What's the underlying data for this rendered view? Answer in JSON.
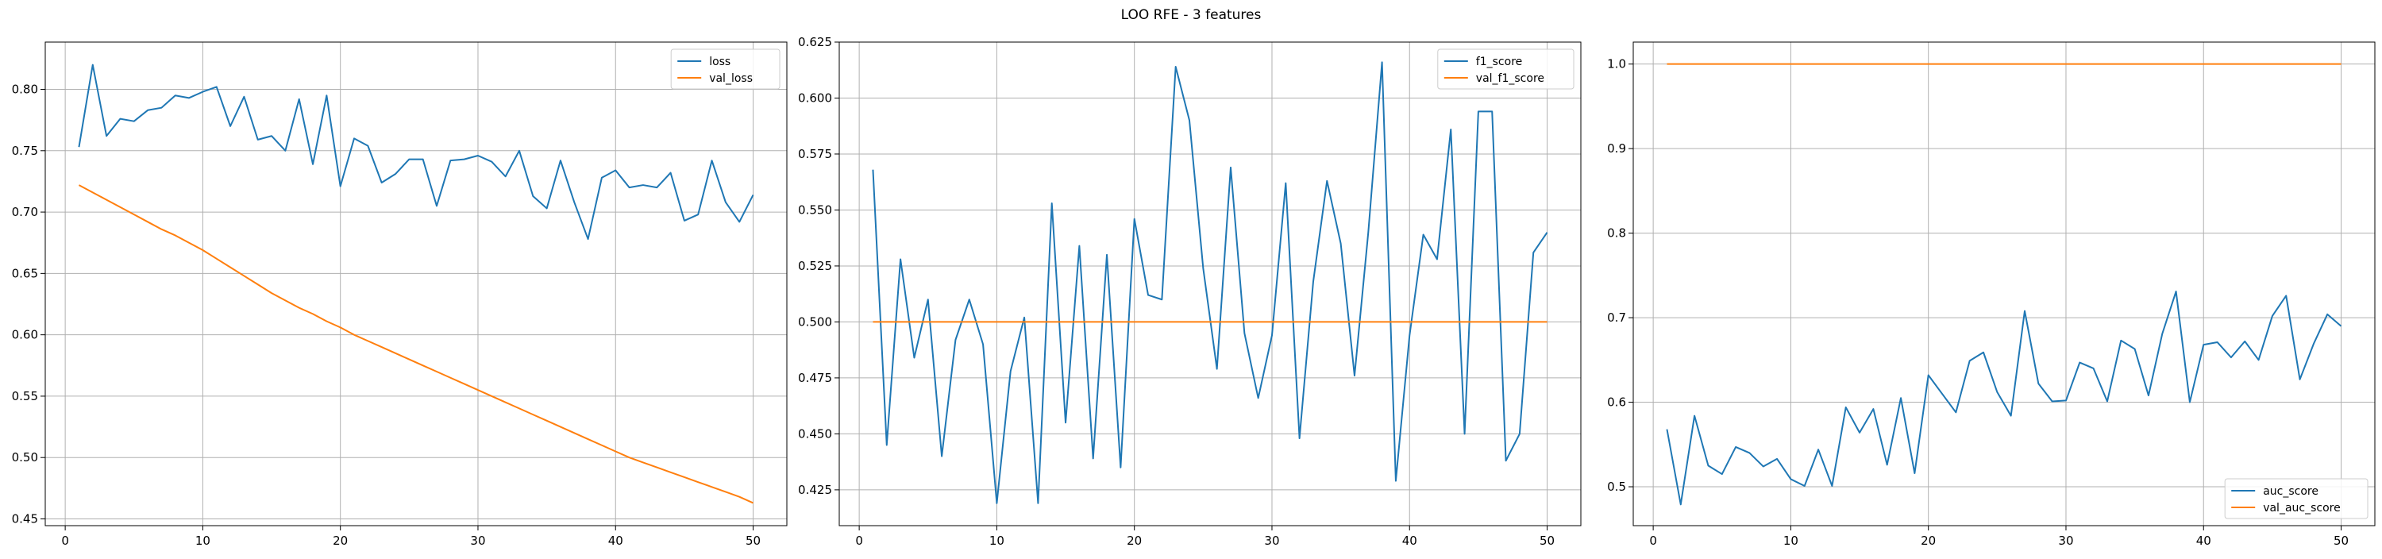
{
  "figure": {
    "title": "LOO RFE - 3 features"
  },
  "colors": {
    "series1": "#1f77b4",
    "series2": "#ff7f0e",
    "grid": "#b0b0b0"
  },
  "chart_data": [
    {
      "type": "line",
      "title": "",
      "xlabel": "",
      "ylabel": "",
      "xlim": [
        -1.45,
        52.45
      ],
      "ylim": [
        0.4445,
        0.8385
      ],
      "xticks": [
        0,
        10,
        20,
        30,
        40,
        50
      ],
      "yticks": [
        0.45,
        0.5,
        0.55,
        0.6,
        0.65,
        0.7,
        0.75,
        0.8
      ],
      "ytick_labels": [
        "0.45",
        "0.50",
        "0.55",
        "0.60",
        "0.65",
        "0.70",
        "0.75",
        "0.80"
      ],
      "grid": true,
      "legend": "top-right",
      "x": [
        1,
        2,
        3,
        4,
        5,
        6,
        7,
        8,
        9,
        10,
        11,
        12,
        13,
        14,
        15,
        16,
        17,
        18,
        19,
        20,
        21,
        22,
        23,
        24,
        25,
        26,
        27,
        28,
        29,
        30,
        31,
        32,
        33,
        34,
        35,
        36,
        37,
        38,
        39,
        40,
        41,
        42,
        43,
        44,
        45,
        46,
        47,
        48,
        49,
        50
      ],
      "series": [
        {
          "name": "loss",
          "values": [
            0.753,
            0.82,
            0.762,
            0.776,
            0.774,
            0.783,
            0.785,
            0.795,
            0.793,
            0.798,
            0.802,
            0.77,
            0.794,
            0.759,
            0.762,
            0.75,
            0.792,
            0.739,
            0.795,
            0.721,
            0.76,
            0.754,
            0.724,
            0.731,
            0.743,
            0.743,
            0.705,
            0.742,
            0.743,
            0.746,
            0.741,
            0.729,
            0.75,
            0.713,
            0.703,
            0.742,
            0.708,
            0.678,
            0.728,
            0.734,
            0.72,
            0.722,
            0.72,
            0.732,
            0.693,
            0.698,
            0.742,
            0.708,
            0.692,
            0.714
          ]
        },
        {
          "name": "val_loss",
          "values": [
            0.722,
            0.716,
            0.71,
            0.704,
            0.698,
            0.692,
            0.686,
            0.681,
            0.675,
            0.669,
            0.662,
            0.655,
            0.648,
            0.641,
            0.634,
            0.628,
            0.622,
            0.617,
            0.611,
            0.606,
            0.6,
            0.595,
            0.59,
            0.585,
            0.58,
            0.575,
            0.57,
            0.565,
            0.56,
            0.555,
            0.55,
            0.545,
            0.54,
            0.535,
            0.53,
            0.525,
            0.52,
            0.515,
            0.51,
            0.505,
            0.5,
            0.496,
            0.492,
            0.488,
            0.484,
            0.48,
            0.476,
            0.472,
            0.468,
            0.463
          ]
        }
      ]
    },
    {
      "type": "line",
      "title": "",
      "xlabel": "",
      "ylabel": "",
      "xlim": [
        -1.45,
        52.45
      ],
      "ylim": [
        0.409,
        0.625
      ],
      "xticks": [
        0,
        10,
        20,
        30,
        40,
        50
      ],
      "yticks": [
        0.425,
        0.45,
        0.475,
        0.5,
        0.525,
        0.55,
        0.575,
        0.6,
        0.625
      ],
      "ytick_labels": [
        "0.425",
        "0.450",
        "0.475",
        "0.500",
        "0.525",
        "0.550",
        "0.575",
        "0.600",
        "0.625"
      ],
      "grid": true,
      "legend": "top-right",
      "x": [
        1,
        2,
        3,
        4,
        5,
        6,
        7,
        8,
        9,
        10,
        11,
        12,
        13,
        14,
        15,
        16,
        17,
        18,
        19,
        20,
        21,
        22,
        23,
        24,
        25,
        26,
        27,
        28,
        29,
        30,
        31,
        32,
        33,
        34,
        35,
        36,
        37,
        38,
        39,
        40,
        41,
        42,
        43,
        44,
        45,
        46,
        47,
        48,
        49,
        50
      ],
      "series": [
        {
          "name": "f1_score",
          "values": [
            0.568,
            0.445,
            0.528,
            0.484,
            0.51,
            0.44,
            0.492,
            0.51,
            0.49,
            0.419,
            0.478,
            0.502,
            0.419,
            0.553,
            0.455,
            0.534,
            0.439,
            0.53,
            0.435,
            0.546,
            0.512,
            0.51,
            0.614,
            0.59,
            0.524,
            0.479,
            0.569,
            0.495,
            0.466,
            0.494,
            0.562,
            0.448,
            0.518,
            0.563,
            0.535,
            0.476,
            0.54,
            0.616,
            0.429,
            0.494,
            0.539,
            0.528,
            0.586,
            0.45,
            0.594,
            0.594,
            0.438,
            0.45,
            0.531,
            0.54
          ]
        },
        {
          "name": "val_f1_score",
          "values": [
            0.5,
            0.5,
            0.5,
            0.5,
            0.5,
            0.5,
            0.5,
            0.5,
            0.5,
            0.5,
            0.5,
            0.5,
            0.5,
            0.5,
            0.5,
            0.5,
            0.5,
            0.5,
            0.5,
            0.5,
            0.5,
            0.5,
            0.5,
            0.5,
            0.5,
            0.5,
            0.5,
            0.5,
            0.5,
            0.5,
            0.5,
            0.5,
            0.5,
            0.5,
            0.5,
            0.5,
            0.5,
            0.5,
            0.5,
            0.5,
            0.5,
            0.5,
            0.5,
            0.5,
            0.5,
            0.5,
            0.5,
            0.5,
            0.5,
            0.5
          ]
        }
      ]
    },
    {
      "type": "line",
      "title": "",
      "xlabel": "",
      "ylabel": "",
      "xlim": [
        -1.45,
        52.45
      ],
      "ylim": [
        0.454,
        1.026
      ],
      "xticks": [
        0,
        10,
        20,
        30,
        40,
        50
      ],
      "yticks": [
        0.5,
        0.6,
        0.7,
        0.8,
        0.9,
        1.0
      ],
      "ytick_labels": [
        "0.5",
        "0.6",
        "0.7",
        "0.8",
        "0.9",
        "1.0"
      ],
      "grid": true,
      "legend": "bottom-right",
      "x": [
        1,
        2,
        3,
        4,
        5,
        6,
        7,
        8,
        9,
        10,
        11,
        12,
        13,
        14,
        15,
        16,
        17,
        18,
        19,
        20,
        21,
        22,
        23,
        24,
        25,
        26,
        27,
        28,
        29,
        30,
        31,
        32,
        33,
        34,
        35,
        36,
        37,
        38,
        39,
        40,
        41,
        42,
        43,
        44,
        45,
        46,
        47,
        48,
        49,
        50
      ],
      "series": [
        {
          "name": "auc_score",
          "values": [
            0.568,
            0.479,
            0.584,
            0.525,
            0.515,
            0.547,
            0.54,
            0.524,
            0.533,
            0.509,
            0.501,
            0.544,
            0.501,
            0.594,
            0.564,
            0.592,
            0.526,
            0.605,
            0.516,
            0.632,
            0.61,
            0.588,
            0.649,
            0.659,
            0.612,
            0.584,
            0.708,
            0.622,
            0.601,
            0.602,
            0.647,
            0.64,
            0.601,
            0.673,
            0.663,
            0.608,
            0.681,
            0.731,
            0.6,
            0.668,
            0.671,
            0.653,
            0.672,
            0.65,
            0.702,
            0.726,
            0.627,
            0.669,
            0.704,
            0.69
          ]
        },
        {
          "name": "val_auc_score",
          "values": [
            1.0,
            1.0,
            1.0,
            1.0,
            1.0,
            1.0,
            1.0,
            1.0,
            1.0,
            1.0,
            1.0,
            1.0,
            1.0,
            1.0,
            1.0,
            1.0,
            1.0,
            1.0,
            1.0,
            1.0,
            1.0,
            1.0,
            1.0,
            1.0,
            1.0,
            1.0,
            1.0,
            1.0,
            1.0,
            1.0,
            1.0,
            1.0,
            1.0,
            1.0,
            1.0,
            1.0,
            1.0,
            1.0,
            1.0,
            1.0,
            1.0,
            1.0,
            1.0,
            1.0,
            1.0,
            1.0,
            1.0,
            1.0,
            1.0,
            1.0
          ]
        }
      ]
    }
  ]
}
